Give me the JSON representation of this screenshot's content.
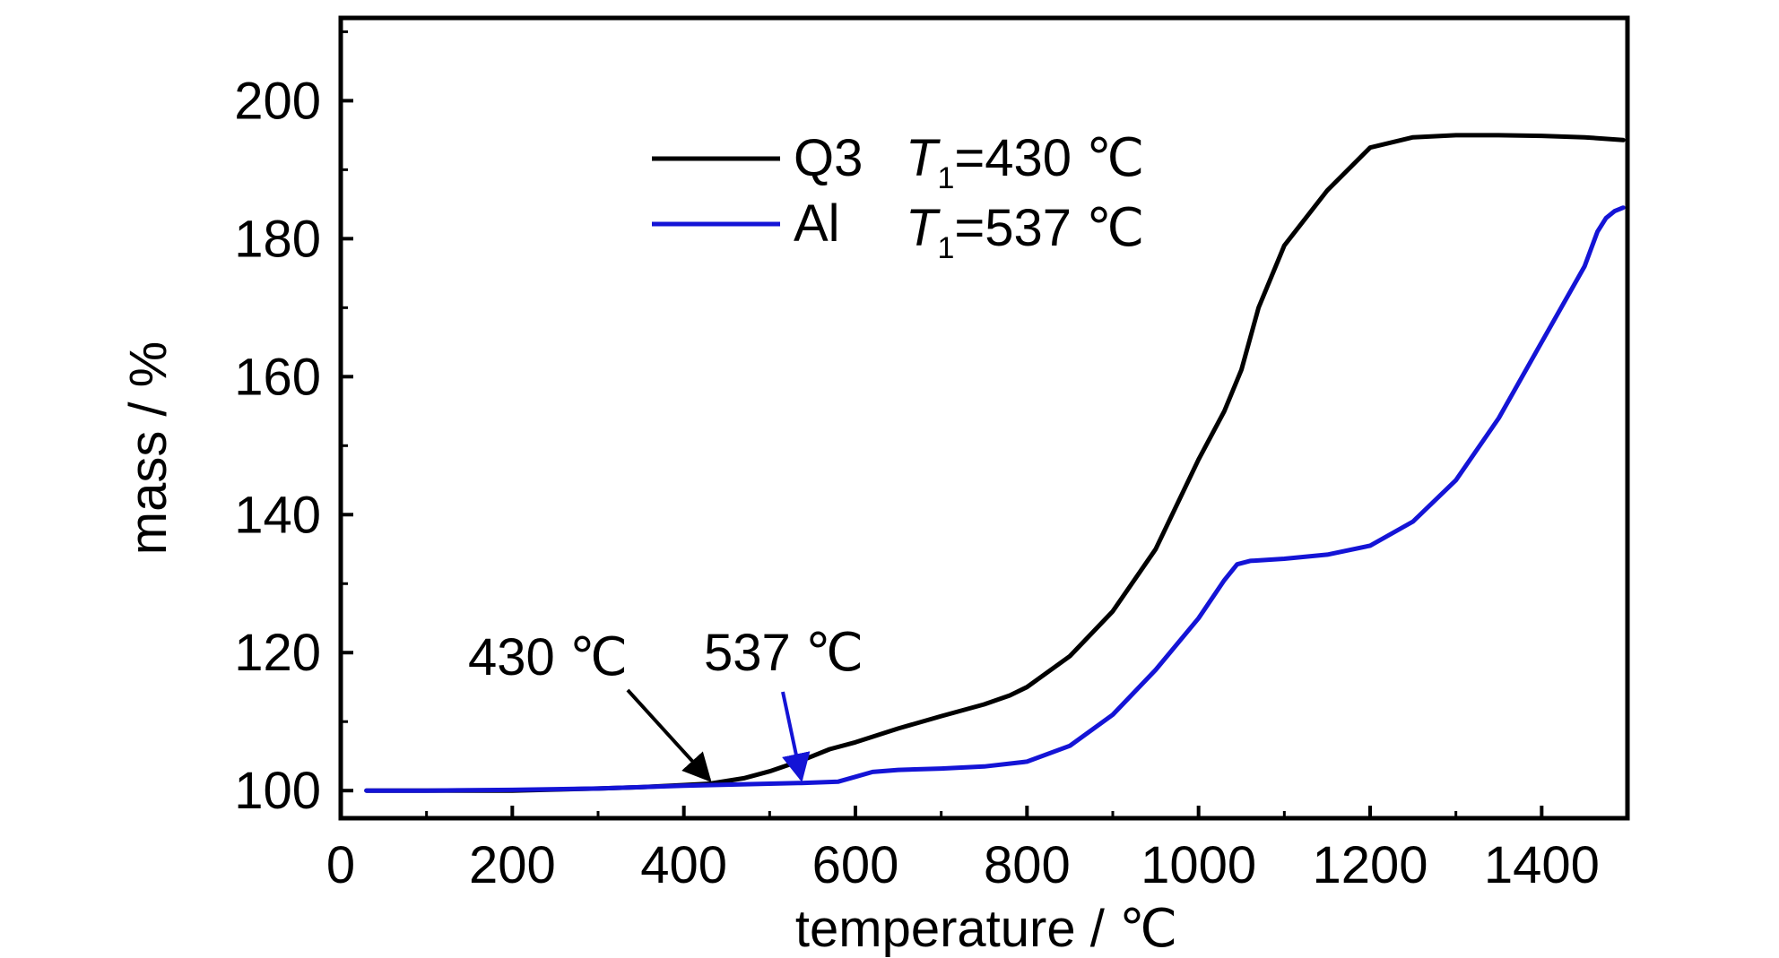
{
  "chart_data": {
    "type": "line",
    "xlabel": "temperature / ℃",
    "ylabel": "mass / %",
    "xlim": [
      0,
      1500
    ],
    "ylim": [
      96,
      212
    ],
    "xticks": [
      0,
      200,
      400,
      600,
      800,
      1000,
      1200,
      1400
    ],
    "yticks": [
      100,
      120,
      140,
      160,
      180,
      200
    ],
    "grid": false,
    "legend": "top-left",
    "colors": {
      "Q3": "#000000",
      "Al": "#1414d6"
    },
    "series": [
      {
        "name": "Q3",
        "x": [
          30,
          100,
          200,
          300,
          350,
          400,
          430,
          470,
          500,
          540,
          570,
          600,
          650,
          700,
          750,
          780,
          800,
          850,
          900,
          950,
          1000,
          1030,
          1050,
          1070,
          1100,
          1150,
          1200,
          1250,
          1300,
          1350,
          1400,
          1450,
          1495
        ],
        "y": [
          100,
          100,
          100,
          100.3,
          100.5,
          100.8,
          101,
          101.8,
          102.8,
          104.5,
          106,
          107,
          109,
          110.8,
          112.5,
          113.8,
          115,
          119.5,
          126,
          135,
          148,
          155,
          161,
          170,
          179,
          187,
          193.2,
          194.7,
          195,
          195,
          194.9,
          194.7,
          194.3
        ]
      },
      {
        "name": "Al",
        "x": [
          30,
          100,
          200,
          300,
          400,
          500,
          537,
          580,
          600,
          620,
          650,
          700,
          750,
          800,
          850,
          900,
          950,
          1000,
          1030,
          1045,
          1060,
          1100,
          1150,
          1200,
          1250,
          1300,
          1350,
          1400,
          1450,
          1465,
          1475,
          1485,
          1495
        ],
        "y": [
          100,
          100,
          100.1,
          100.3,
          100.7,
          101,
          101.1,
          101.3,
          102,
          102.7,
          103,
          103.2,
          103.5,
          104.2,
          106.5,
          111,
          117.5,
          125,
          130.5,
          132.8,
          133.3,
          133.6,
          134.2,
          135.5,
          139,
          145,
          154,
          165,
          176,
          181,
          183,
          184,
          184.5
        ]
      }
    ],
    "legend_entries": [
      {
        "label": "Q3",
        "T_symbol": "T",
        "T_sub": "1",
        "T_value": "=430 ℃"
      },
      {
        "label": "Al",
        "T_symbol": "T",
        "T_sub": "1",
        "T_value": "=537 ℃"
      }
    ],
    "annotations": [
      {
        "text": "430 ℃",
        "points_to": {
          "x": 430,
          "y": 101
        },
        "color": "#000000"
      },
      {
        "text": "537 ℃",
        "points_to": {
          "x": 537,
          "y": 101.1
        },
        "color": "#1414d6"
      }
    ]
  }
}
